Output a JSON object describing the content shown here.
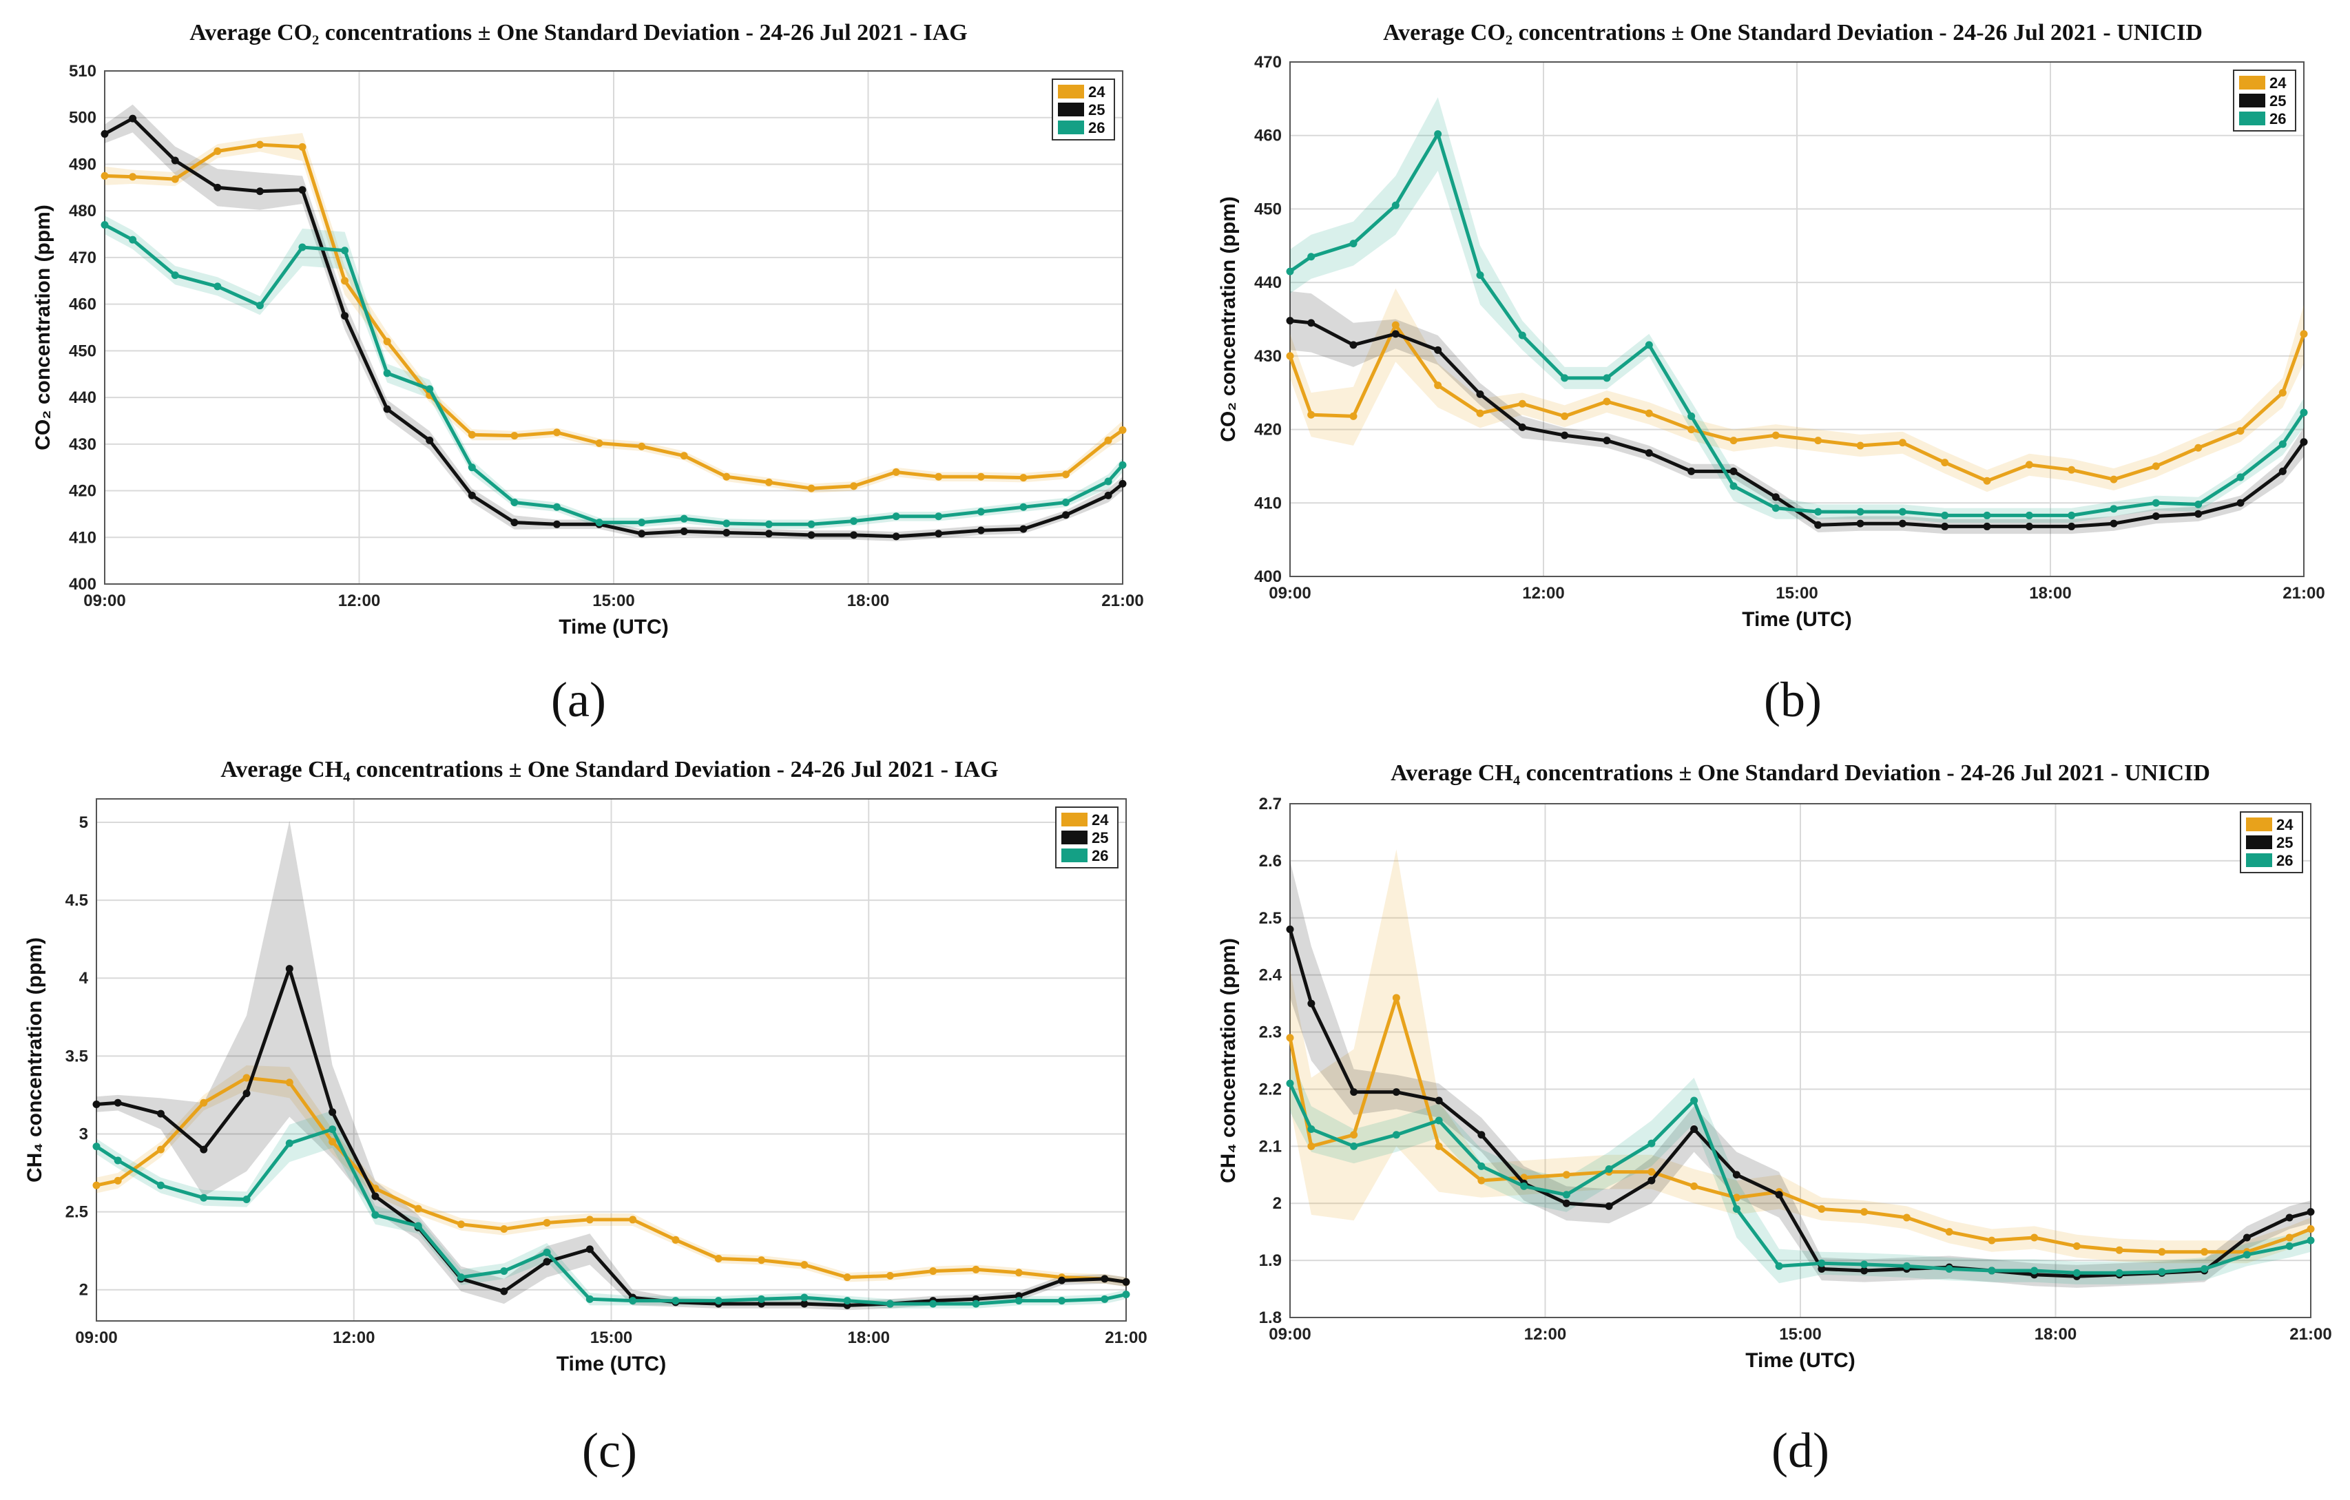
{
  "colors": {
    "24": "#E8A21B",
    "25": "#111111",
    "26": "#14A085"
  },
  "chart_data": [
    {
      "type": "line",
      "panel_label": "(a)",
      "title": "Average CO₂ concentrations ± One Standard Deviation - 24-26 Jul 2021 - IAG",
      "ylabel": "CO₂ concentration (ppm)",
      "xlabel": "Time (UTC)",
      "xlim": [
        9,
        21
      ],
      "ylim": [
        400,
        510
      ],
      "xticks": [
        9,
        12,
        15,
        18,
        21
      ],
      "xtick_labels": [
        "09:00",
        "12:00",
        "15:00",
        "18:00",
        "21:00"
      ],
      "yticks": [
        400,
        410,
        420,
        430,
        440,
        450,
        460,
        470,
        480,
        490,
        500,
        510
      ],
      "ytick_labels": [
        "400",
        "410",
        "420",
        "430",
        "440",
        "450",
        "460",
        "470",
        "480",
        "490",
        "500",
        "510"
      ],
      "x": [
        9,
        9.33,
        9.83,
        10.33,
        10.83,
        11.33,
        11.83,
        12.33,
        12.83,
        13.33,
        13.83,
        14.33,
        14.83,
        15.33,
        15.83,
        16.33,
        16.83,
        17.33,
        17.83,
        18.33,
        18.83,
        19.33,
        19.83,
        20.33,
        20.83,
        21
      ],
      "legend": [
        "24",
        "25",
        "26"
      ],
      "series": [
        {
          "name": "24",
          "values": [
            487.5,
            487.3,
            486.8,
            492.8,
            494.2,
            493.7,
            465,
            452,
            440.5,
            432,
            431.8,
            432.5,
            430.2,
            429.5,
            427.5,
            423,
            421.8,
            420.5,
            421,
            424,
            423,
            423,
            422.8,
            423.5,
            430.8,
            433
          ],
          "spread": [
            2,
            1.5,
            1.5,
            1.5,
            1.5,
            3,
            3,
            2,
            1.5,
            1.2,
            1,
            1,
            1,
            1,
            1,
            1,
            1,
            1,
            1,
            1,
            1,
            1,
            1,
            1,
            1.5,
            2
          ]
        },
        {
          "name": "25",
          "values": [
            496.5,
            499.8,
            490.8,
            485,
            484.2,
            484.5,
            457.5,
            437.5,
            430.8,
            419,
            413.2,
            412.8,
            412.8,
            410.8,
            411.3,
            411,
            410.8,
            410.5,
            410.5,
            410.2,
            410.8,
            411.5,
            411.8,
            414.8,
            419,
            421.5
          ],
          "spread": [
            2,
            3,
            3,
            4,
            4,
            3,
            3,
            2,
            2,
            1.5,
            1.5,
            1,
            1,
            1,
            1,
            1,
            1,
            1,
            1,
            1,
            1,
            1,
            1,
            1,
            1.5,
            1.5
          ]
        },
        {
          "name": "26",
          "values": [
            477,
            473.8,
            466.2,
            463.8,
            459.7,
            472.2,
            471.5,
            445.2,
            441.8,
            425,
            417.5,
            416.5,
            413.2,
            413.2,
            414,
            413,
            412.8,
            412.8,
            413.5,
            414.5,
            414.5,
            415.5,
            416.5,
            417.5,
            422,
            425.5
          ],
          "spread": [
            2,
            2,
            2,
            2,
            2,
            4,
            4,
            2,
            2,
            1.5,
            1,
            1,
            1,
            1,
            1,
            1,
            1,
            1,
            1,
            1,
            1,
            1,
            1,
            1,
            1.5,
            1.5
          ]
        }
      ]
    },
    {
      "type": "line",
      "panel_label": "(b)",
      "title": "Average CO₂ concentrations ± One Standard Deviation - 24-26 Jul 2021 - UNICID",
      "ylabel": "CO₂ concentration (ppm)",
      "xlabel": "Time (UTC)",
      "xlim": [
        9,
        21
      ],
      "ylim": [
        400,
        470
      ],
      "xticks": [
        9,
        12,
        15,
        18,
        21
      ],
      "xtick_labels": [
        "09:00",
        "12:00",
        "15:00",
        "18:00",
        "21:00"
      ],
      "yticks": [
        400,
        410,
        420,
        430,
        440,
        450,
        460,
        470
      ],
      "ytick_labels": [
        "400",
        "410",
        "420",
        "430",
        "440",
        "450",
        "460",
        "470"
      ],
      "x": [
        9,
        9.25,
        9.75,
        10.25,
        10.75,
        11.25,
        11.75,
        12.25,
        12.75,
        13.25,
        13.75,
        14.25,
        14.75,
        15.25,
        15.75,
        16.25,
        16.75,
        17.25,
        17.75,
        18.25,
        18.75,
        19.25,
        19.75,
        20.25,
        20.75,
        21
      ],
      "legend": [
        "24",
        "25",
        "26"
      ],
      "series": [
        {
          "name": "24",
          "values": [
            430,
            422,
            421.8,
            434.2,
            426,
            422.2,
            423.5,
            421.8,
            423.8,
            422.2,
            420,
            418.5,
            419.2,
            418.5,
            417.8,
            418.2,
            415.5,
            413,
            415.2,
            414.5,
            413.2,
            415,
            417.5,
            419.8,
            425,
            433
          ],
          "spread": [
            3,
            3,
            4,
            5,
            3,
            2,
            1.5,
            1.5,
            1.5,
            1.5,
            1.5,
            1.5,
            1.5,
            1.5,
            1.5,
            1.5,
            1.5,
            1.5,
            1.5,
            1.5,
            1.5,
            1.5,
            1.5,
            1.5,
            2,
            4
          ]
        },
        {
          "name": "25",
          "values": [
            434.8,
            434.5,
            431.5,
            433,
            430.8,
            424.8,
            420.3,
            419.2,
            418.5,
            416.8,
            414.3,
            414.3,
            410.8,
            407,
            407.2,
            407.2,
            406.8,
            406.8,
            406.8,
            406.8,
            407.2,
            408.2,
            408.5,
            410,
            414.3,
            418.3
          ],
          "spread": [
            4,
            4,
            3,
            2,
            2,
            1.5,
            1.5,
            1,
            1,
            1,
            1,
            1,
            1,
            1,
            1,
            1,
            1,
            1,
            1,
            1,
            1,
            1,
            1,
            1,
            1.5,
            2
          ]
        },
        {
          "name": "26",
          "values": [
            441.5,
            443.5,
            445.3,
            450.5,
            460.2,
            441,
            432.8,
            427,
            427,
            431.5,
            421.8,
            412.3,
            409.3,
            408.8,
            408.8,
            408.8,
            408.3,
            408.3,
            408.3,
            408.3,
            409.2,
            410,
            409.8,
            413.5,
            418,
            422.3
          ],
          "spread": [
            3,
            3,
            3,
            4,
            5,
            4,
            2,
            1.5,
            1.5,
            1.5,
            2,
            2,
            1.5,
            1,
            1,
            1,
            1,
            1,
            1,
            1,
            1,
            1,
            1,
            1,
            1.5,
            2
          ]
        }
      ]
    },
    {
      "type": "line",
      "panel_label": "(c)",
      "title": "Average CH₄ concentrations ± One Standard Deviation - 24-26 Jul 2021 - IAG",
      "ylabel": "CH₄ concentration (ppm)",
      "xlabel": "Time (UTC)",
      "xlim": [
        9,
        21
      ],
      "ylim": [
        1.8,
        5.15
      ],
      "xticks": [
        9,
        12,
        15,
        18,
        21
      ],
      "xtick_labels": [
        "09:00",
        "12:00",
        "15:00",
        "18:00",
        "21:00"
      ],
      "yticks": [
        2,
        2.5,
        3,
        3.5,
        4,
        4.5,
        5
      ],
      "ytick_labels": [
        "2",
        "2.5",
        "3",
        "3.5",
        "4",
        "4.5",
        "5"
      ],
      "x": [
        9,
        9.25,
        9.75,
        10.25,
        10.75,
        11.25,
        11.75,
        12.25,
        12.75,
        13.25,
        13.75,
        14.25,
        14.75,
        15.25,
        15.75,
        16.25,
        16.75,
        17.25,
        17.75,
        18.25,
        18.75,
        19.25,
        19.75,
        20.25,
        20.75,
        21
      ],
      "legend": [
        "24",
        "25",
        "26"
      ],
      "series": [
        {
          "name": "24",
          "values": [
            2.67,
            2.7,
            2.9,
            3.2,
            3.36,
            3.33,
            2.95,
            2.65,
            2.52,
            2.42,
            2.39,
            2.43,
            2.45,
            2.45,
            2.32,
            2.2,
            2.19,
            2.16,
            2.08,
            2.09,
            2.12,
            2.13,
            2.11,
            2.08,
            2.07,
            2.05
          ],
          "spread": [
            0.05,
            0.05,
            0.05,
            0.05,
            0.08,
            0.1,
            0.08,
            0.05,
            0.04,
            0.04,
            0.04,
            0.04,
            0.04,
            0.04,
            0.03,
            0.03,
            0.03,
            0.03,
            0.03,
            0.03,
            0.03,
            0.03,
            0.03,
            0.03,
            0.03,
            0.03
          ]
        },
        {
          "name": "25",
          "values": [
            3.19,
            3.2,
            3.13,
            2.9,
            3.26,
            4.06,
            3.14,
            2.6,
            2.4,
            2.07,
            1.99,
            2.18,
            2.26,
            1.95,
            1.92,
            1.91,
            1.91,
            1.91,
            1.9,
            1.91,
            1.93,
            1.94,
            1.96,
            2.06,
            2.07,
            2.05
          ],
          "spread": [
            0.05,
            0.05,
            0.1,
            0.3,
            0.5,
            0.95,
            0.3,
            0.1,
            0.08,
            0.08,
            0.08,
            0.1,
            0.1,
            0.05,
            0.03,
            0.03,
            0.03,
            0.03,
            0.03,
            0.03,
            0.03,
            0.03,
            0.03,
            0.03,
            0.03,
            0.03
          ]
        },
        {
          "name": "26",
          "values": [
            2.92,
            2.83,
            2.67,
            2.59,
            2.58,
            2.94,
            3.03,
            2.48,
            2.41,
            2.08,
            2.12,
            2.24,
            1.94,
            1.93,
            1.93,
            1.93,
            1.94,
            1.95,
            1.93,
            1.91,
            1.91,
            1.91,
            1.93,
            1.93,
            1.94,
            1.97
          ],
          "spread": [
            0.05,
            0.05,
            0.05,
            0.05,
            0.05,
            0.12,
            0.12,
            0.06,
            0.05,
            0.05,
            0.05,
            0.06,
            0.04,
            0.03,
            0.03,
            0.03,
            0.03,
            0.03,
            0.03,
            0.03,
            0.03,
            0.03,
            0.03,
            0.03,
            0.03,
            0.03
          ]
        }
      ]
    },
    {
      "type": "line",
      "panel_label": "(d)",
      "title": "Average CH₄ concentrations ± One Standard Deviation - 24-26 Jul 2021 - UNICID",
      "ylabel": "CH₄ concentration (ppm)",
      "xlabel": "Time (UTC)",
      "xlim": [
        9,
        21
      ],
      "ylim": [
        1.8,
        2.7
      ],
      "xticks": [
        9,
        12,
        15,
        18,
        21
      ],
      "xtick_labels": [
        "09:00",
        "12:00",
        "15:00",
        "18:00",
        "21:00"
      ],
      "yticks": [
        1.8,
        1.9,
        2,
        2.1,
        2.2,
        2.3,
        2.4,
        2.5,
        2.6,
        2.7
      ],
      "ytick_labels": [
        "1.8",
        "1.9",
        "2",
        "2.1",
        "2.2",
        "2.3",
        "2.4",
        "2.5",
        "2.6",
        "2.7"
      ],
      "x": [
        9,
        9.25,
        9.75,
        10.25,
        10.75,
        11.25,
        11.75,
        12.25,
        12.75,
        13.25,
        13.75,
        14.25,
        14.75,
        15.25,
        15.75,
        16.25,
        16.75,
        17.25,
        17.75,
        18.25,
        18.75,
        19.25,
        19.75,
        20.25,
        20.75,
        21
      ],
      "legend": [
        "24",
        "25",
        "26"
      ],
      "series": [
        {
          "name": "24",
          "values": [
            2.29,
            2.1,
            2.12,
            2.36,
            2.1,
            2.04,
            2.045,
            2.05,
            2.055,
            2.055,
            2.03,
            2.01,
            2.02,
            1.99,
            1.985,
            1.975,
            1.95,
            1.935,
            1.94,
            1.925,
            1.918,
            1.915,
            1.915,
            1.915,
            1.94,
            1.955
          ],
          "spread": [
            0.12,
            0.12,
            0.15,
            0.26,
            0.08,
            0.03,
            0.03,
            0.03,
            0.03,
            0.03,
            0.03,
            0.03,
            0.03,
            0.02,
            0.02,
            0.02,
            0.02,
            0.02,
            0.02,
            0.02,
            0.02,
            0.02,
            0.02,
            0.02,
            0.02,
            0.02
          ]
        },
        {
          "name": "25",
          "values": [
            2.48,
            2.35,
            2.195,
            2.195,
            2.18,
            2.12,
            2.035,
            2.0,
            1.995,
            2.04,
            2.13,
            2.05,
            2.015,
            1.885,
            1.882,
            1.885,
            1.888,
            1.882,
            1.875,
            1.872,
            1.875,
            1.878,
            1.882,
            1.94,
            1.975,
            1.985
          ],
          "spread": [
            0.12,
            0.1,
            0.04,
            0.03,
            0.03,
            0.03,
            0.03,
            0.03,
            0.03,
            0.04,
            0.04,
            0.04,
            0.04,
            0.02,
            0.02,
            0.02,
            0.02,
            0.02,
            0.02,
            0.02,
            0.02,
            0.02,
            0.02,
            0.02,
            0.02,
            0.02
          ]
        },
        {
          "name": "26",
          "values": [
            2.21,
            2.13,
            2.1,
            2.12,
            2.145,
            2.065,
            2.03,
            2.015,
            2.06,
            2.105,
            2.18,
            1.99,
            1.89,
            1.895,
            1.893,
            1.89,
            1.885,
            1.882,
            1.882,
            1.878,
            1.878,
            1.88,
            1.885,
            1.91,
            1.925,
            1.935
          ],
          "spread": [
            0.05,
            0.04,
            0.03,
            0.03,
            0.03,
            0.03,
            0.03,
            0.03,
            0.03,
            0.04,
            0.04,
            0.05,
            0.03,
            0.02,
            0.02,
            0.02,
            0.02,
            0.02,
            0.02,
            0.02,
            0.02,
            0.02,
            0.02,
            0.02,
            0.02,
            0.02
          ]
        }
      ]
    }
  ]
}
